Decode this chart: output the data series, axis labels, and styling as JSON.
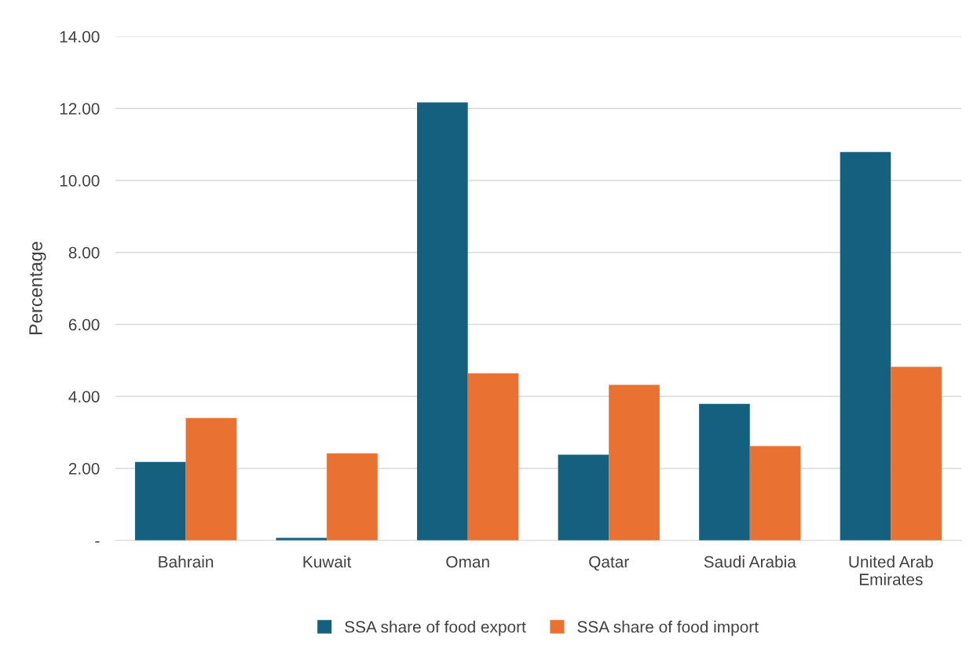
{
  "chart_data": {
    "type": "bar",
    "ylabel": "Percentage",
    "categories": [
      "Bahrain",
      "Kuwait",
      "Oman",
      "Qatar",
      "Saudi Arabia",
      "United Arab\nEmirates"
    ],
    "series": [
      {
        "name": "SSA share of food export",
        "color": "#16607f",
        "values": [
          2.18,
          0.07,
          12.17,
          2.38,
          3.79,
          10.79
        ]
      },
      {
        "name": "SSA share of food import",
        "color": "#e97132",
        "values": [
          3.4,
          2.42,
          4.64,
          4.32,
          2.62,
          4.82
        ]
      }
    ],
    "ylim": [
      0,
      14
    ],
    "yticks": [
      {
        "value": 0,
        "label": "-"
      },
      {
        "value": 2,
        "label": "2.00"
      },
      {
        "value": 4,
        "label": "4.00"
      },
      {
        "value": 6,
        "label": "6.00"
      },
      {
        "value": 8,
        "label": "8.00"
      },
      {
        "value": 10,
        "label": "10.00"
      },
      {
        "value": 12,
        "label": "12.00"
      },
      {
        "value": 14,
        "label": "14.00"
      }
    ],
    "grid": "y",
    "legend": "bottom"
  }
}
